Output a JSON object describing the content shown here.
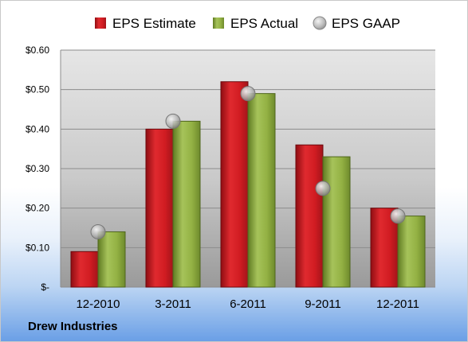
{
  "chart_data": {
    "type": "bar",
    "categories": [
      "12-2010",
      "3-2011",
      "6-2011",
      "9-2011",
      "12-2011"
    ],
    "series": [
      {
        "name": "EPS Estimate",
        "values": [
          0.09,
          0.4,
          0.52,
          0.36,
          0.2
        ],
        "color": "#c8171d",
        "kind": "bar"
      },
      {
        "name": "EPS Actual",
        "values": [
          0.14,
          0.42,
          0.49,
          0.33,
          0.18
        ],
        "color": "#8aa93c",
        "kind": "bar"
      },
      {
        "name": "EPS GAAP",
        "values": [
          0.14,
          0.42,
          0.49,
          0.25,
          0.18
        ],
        "color": "#a8a8a8",
        "kind": "marker"
      }
    ],
    "y_ticks": [
      "$-",
      "$0.10",
      "$0.20",
      "$0.30",
      "$0.40",
      "$0.50",
      "$0.60"
    ],
    "ylim": [
      0,
      0.6
    ],
    "grid": true,
    "legend_position": "top"
  },
  "footer": {
    "company": "Drew Industries"
  }
}
